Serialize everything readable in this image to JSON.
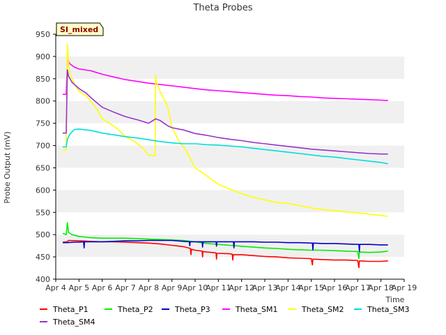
{
  "chart_data": {
    "type": "line",
    "title": "Theta Probes",
    "xlabel": "Time",
    "ylabel": "Probe Output (mV)",
    "badge": "SI_mixed",
    "xlim": [
      4,
      19
    ],
    "ylim": [
      400,
      950
    ],
    "x_ticks": [
      4,
      5,
      6,
      7,
      8,
      9,
      10,
      11,
      12,
      13,
      14,
      15,
      16,
      17,
      18,
      19
    ],
    "x_tick_labels": [
      "Apr 4",
      "Apr 5",
      "Apr 6",
      "Apr 7",
      "Apr 8",
      "Apr 9",
      "Apr 10",
      "Apr 11",
      "Apr 12",
      "Apr 13",
      "Apr 14",
      "Apr 15",
      "Apr 16",
      "Apr 17",
      "Apr 18",
      "Apr 19"
    ],
    "y_ticks": [
      400,
      450,
      500,
      550,
      600,
      650,
      700,
      750,
      800,
      850,
      900,
      950
    ],
    "y_tick_labels": [
      "400",
      "450",
      "500",
      "550",
      "600",
      "650",
      "700",
      "750",
      "800",
      "850",
      "900",
      "950"
    ],
    "grid": "horizontal alternating bands",
    "legend_position": "bottom",
    "series": [
      {
        "name": "Theta_P1",
        "color": "#ff0000",
        "x": [
          4.3,
          4.5,
          4.55,
          5.0,
          5.5,
          6.0,
          6.5,
          7.0,
          7.5,
          8.0,
          8.5,
          9.0,
          9.5,
          9.8,
          9.82,
          9.84,
          10.0,
          10.3,
          10.32,
          10.34,
          10.5,
          10.9,
          10.92,
          10.94,
          11.0,
          11.5,
          11.6,
          11.62,
          11.64,
          12.0,
          12.5,
          13.0,
          13.5,
          14.0,
          14.5,
          15.0,
          15.05,
          15.07,
          15.1,
          15.5,
          16.0,
          16.5,
          17.0,
          17.05,
          17.07,
          17.1,
          17.5,
          18.0,
          18.3
        ],
        "y": [
          483,
          484,
          487,
          486,
          485,
          484,
          484,
          483,
          482,
          481,
          479,
          476,
          473,
          469,
          455,
          467,
          465,
          463,
          450,
          462,
          461,
          459,
          445,
          458,
          458,
          457,
          456,
          443,
          455,
          455,
          453,
          451,
          450,
          448,
          447,
          446,
          432,
          445,
          445,
          444,
          443,
          443,
          442,
          426,
          441,
          441,
          440,
          440,
          441
        ]
      },
      {
        "name": "Theta_P2",
        "color": "#00ee00",
        "x": [
          4.3,
          4.45,
          4.5,
          4.55,
          4.7,
          5.0,
          5.5,
          6.0,
          6.5,
          7.0,
          7.5,
          8.0,
          8.5,
          9.0,
          9.5,
          10.0,
          10.5,
          11.0,
          11.5,
          12.0,
          12.5,
          13.0,
          13.5,
          14.0,
          14.5,
          15.0,
          15.5,
          16.0,
          16.5,
          17.0,
          17.05,
          17.07,
          17.1,
          17.5,
          18.0,
          18.3
        ],
        "y": [
          503,
          500,
          527,
          505,
          500,
          496,
          493,
          492,
          492,
          492,
          491,
          490,
          489,
          488,
          487,
          484,
          480,
          478,
          476,
          474,
          472,
          470,
          469,
          467,
          466,
          465,
          465,
          464,
          463,
          462,
          446,
          461,
          461,
          460,
          461,
          463
        ]
      },
      {
        "name": "Theta_P3",
        "color": "#0000cc",
        "x": [
          4.3,
          4.5,
          4.8,
          5.0,
          5.2,
          5.22,
          5.24,
          5.5,
          6.0,
          6.5,
          7.0,
          7.5,
          8.0,
          8.5,
          9.0,
          9.5,
          9.75,
          9.77,
          9.79,
          10.0,
          10.3,
          10.32,
          10.34,
          10.6,
          10.9,
          10.92,
          10.94,
          11.0,
          11.5,
          11.65,
          11.67,
          11.69,
          12.0,
          12.5,
          13.0,
          13.5,
          14.0,
          14.5,
          15.0,
          15.05,
          15.07,
          15.09,
          15.5,
          16.0,
          16.5,
          17.0,
          17.05,
          17.07,
          17.09,
          17.5,
          18.0,
          18.3
        ],
        "y": [
          482,
          482,
          483,
          483,
          484,
          470,
          484,
          484,
          484,
          485,
          486,
          486,
          487,
          487,
          487,
          485,
          484,
          475,
          484,
          484,
          484,
          472,
          484,
          484,
          484,
          474,
          484,
          484,
          484,
          484,
          470,
          484,
          484,
          484,
          483,
          483,
          482,
          482,
          481,
          481,
          466,
          481,
          480,
          480,
          479,
          478,
          478,
          462,
          478,
          478,
          477,
          477
        ]
      },
      {
        "name": "Theta_SM1",
        "color": "#ff00ff",
        "x": [
          4.3,
          4.45,
          4.5,
          4.6,
          4.8,
          5.0,
          5.5,
          6.0,
          6.5,
          7.0,
          7.5,
          8.0,
          8.5,
          9.0,
          9.5,
          10.0,
          10.5,
          11.0,
          11.5,
          12.0,
          12.5,
          13.0,
          13.5,
          14.0,
          14.5,
          15.0,
          15.5,
          16.0,
          16.5,
          17.0,
          17.5,
          18.0,
          18.3
        ],
        "y": [
          815,
          815,
          895,
          884,
          876,
          872,
          868,
          860,
          854,
          848,
          844,
          840,
          837,
          834,
          831,
          828,
          825,
          823,
          821,
          819,
          817,
          815,
          813,
          812,
          810,
          809,
          807,
          806,
          805,
          804,
          803,
          802,
          801
        ]
      },
      {
        "name": "Theta_SM2",
        "color": "#ffff00",
        "x": [
          4.3,
          4.45,
          4.5,
          4.55,
          4.6,
          4.8,
          5.0,
          5.3,
          5.5,
          5.8,
          6.0,
          6.3,
          6.6,
          7.0,
          7.3,
          7.5,
          7.8,
          8.0,
          8.28,
          8.3,
          8.32,
          8.5,
          8.8,
          9.0,
          9.3,
          9.6,
          10.0,
          10.5,
          11.0,
          11.5,
          12.0,
          12.5,
          13.0,
          13.5,
          14.0,
          14.5,
          15.0,
          15.5,
          16.0,
          16.5,
          17.0,
          17.5,
          18.0,
          18.3
        ],
        "y": [
          690,
          690,
          928,
          890,
          862,
          838,
          822,
          812,
          800,
          780,
          760,
          750,
          740,
          720,
          712,
          705,
          692,
          678,
          677,
          858,
          845,
          820,
          790,
          742,
          710,
          690,
          650,
          632,
          613,
          602,
          592,
          584,
          578,
          572,
          570,
          565,
          560,
          556,
          554,
          551,
          549,
          546,
          543,
          541
        ]
      },
      {
        "name": "Theta_SM3",
        "color": "#00dddd",
        "x": [
          4.3,
          4.45,
          4.5,
          4.6,
          4.8,
          5.0,
          5.5,
          6.0,
          6.5,
          7.0,
          7.5,
          8.0,
          8.5,
          9.0,
          9.5,
          10.0,
          10.5,
          11.0,
          11.5,
          12.0,
          12.5,
          13.0,
          13.5,
          14.0,
          14.5,
          15.0,
          15.5,
          16.0,
          16.5,
          17.0,
          17.5,
          18.0,
          18.3
        ],
        "y": [
          697,
          697,
          714,
          725,
          736,
          737,
          734,
          728,
          724,
          720,
          717,
          713,
          709,
          706,
          704,
          704,
          702,
          701,
          699,
          697,
          694,
          691,
          688,
          685,
          682,
          679,
          676,
          674,
          671,
          668,
          665,
          662,
          659
        ]
      },
      {
        "name": "Theta_SM4",
        "color": "#9933cc",
        "x": [
          4.3,
          4.45,
          4.5,
          4.55,
          4.7,
          5.0,
          5.3,
          5.5,
          6.0,
          6.5,
          7.0,
          7.5,
          8.0,
          8.3,
          8.5,
          8.8,
          9.0,
          9.5,
          10.0,
          10.5,
          11.0,
          11.5,
          12.0,
          12.5,
          13.0,
          13.5,
          14.0,
          14.5,
          15.0,
          15.5,
          16.0,
          16.5,
          17.0,
          17.5,
          18.0,
          18.3
        ],
        "y": [
          728,
          728,
          870,
          856,
          842,
          828,
          818,
          808,
          786,
          775,
          765,
          758,
          750,
          760,
          756,
          745,
          740,
          735,
          727,
          723,
          718,
          714,
          711,
          707,
          704,
          701,
          698,
          695,
          692,
          690,
          688,
          686,
          684,
          682,
          681,
          681
        ]
      }
    ]
  }
}
